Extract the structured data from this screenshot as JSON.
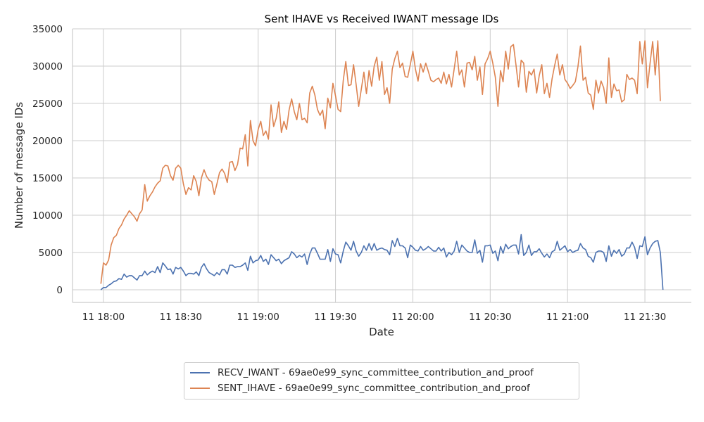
{
  "chart_data": {
    "type": "line",
    "title": "Sent IHAVE vs Received IWANT message IDs",
    "xlabel": "Date",
    "ylabel": "Number of message IDs",
    "ylim": [
      -1700,
      35000
    ],
    "yticks": [
      "0",
      "5000",
      "10000",
      "15000",
      "20000",
      "25000",
      "30000",
      "35000"
    ],
    "xticks": [
      "11 18:00",
      "11 18:30",
      "11 19:00",
      "11 19:30",
      "11 20:00",
      "11 20:30",
      "11 21:00",
      "11 21:30"
    ],
    "xlim": [
      "17:48",
      "21:48"
    ],
    "grid": true,
    "legend_position": "bottom-center",
    "x_start": "17:59",
    "x_step_minutes": 1,
    "series": [
      {
        "name": "RECV_IWANT - 69ae0e99_sync_committee_contribution_and_proof",
        "color": "#4c72b0",
        "values": [
          0,
          300,
          300,
          600,
          800,
          1100,
          1200,
          1500,
          1400,
          2100,
          1700,
          1900,
          1900,
          1600,
          1300,
          1900,
          1900,
          2500,
          2000,
          2300,
          2500,
          2300,
          3100,
          2300,
          3600,
          3200,
          2700,
          2800,
          2100,
          3000,
          2800,
          3000,
          2500,
          1900,
          2200,
          2200,
          2100,
          2400,
          1900,
          3000,
          3500,
          2800,
          2300,
          2100,
          1900,
          2300,
          2000,
          2700,
          2700,
          2100,
          3300,
          3300,
          3000,
          3100,
          3100,
          3300,
          3600,
          2600,
          4500,
          3600,
          3900,
          4000,
          4600,
          3800,
          4100,
          3400,
          4700,
          4300,
          3900,
          4100,
          3500,
          3900,
          4100,
          4300,
          5100,
          4800,
          4300,
          4600,
          4400,
          4800,
          3400,
          4800,
          5600,
          5600,
          4900,
          4100,
          4100,
          4100,
          5400,
          3800,
          5500,
          4800,
          4700,
          3600,
          5200,
          6400,
          5900,
          5300,
          6500,
          5200,
          4500,
          5000,
          5900,
          5300,
          6200,
          5300,
          6200,
          5300,
          5500,
          5600,
          5400,
          5300,
          4700,
          6600,
          5800,
          6900,
          5900,
          5900,
          5600,
          4300,
          6000,
          5700,
          5300,
          5200,
          5800,
          5300,
          5500,
          5800,
          5500,
          5200,
          5200,
          5700,
          5200,
          5600,
          4400,
          5000,
          4700,
          5200,
          6500,
          5000,
          6000,
          5600,
          5200,
          5000,
          5000,
          6700,
          4900,
          5300,
          3700,
          5900,
          5900,
          6000,
          4900,
          5200,
          3900,
          5800,
          4900,
          6100,
          5500,
          5800,
          6000,
          6000,
          4800,
          7400,
          4600,
          5000,
          6000,
          4600,
          5100,
          5100,
          5500,
          4900,
          4400,
          4800,
          4300,
          5100,
          5300,
          6500,
          5300,
          5600,
          5900,
          5100,
          5400,
          5000,
          5200,
          5300,
          6200,
          5600,
          5400,
          4500,
          4300,
          3700,
          5000,
          5200,
          5200,
          5000,
          3800,
          5900,
          4500,
          5300,
          4900,
          5400,
          4500,
          4800,
          5600,
          5600,
          6400,
          5700,
          4200,
          5900,
          5800,
          7100,
          4700,
          5600,
          6200,
          6500,
          6600,
          5000,
          0
        ]
      },
      {
        "name": "SENT_IHAVE - 69ae0e99_sync_committee_contribution_and_proof",
        "color": "#dd8452",
        "values": [
          800,
          3600,
          3300,
          4000,
          6000,
          7000,
          7300,
          8200,
          8700,
          9500,
          10000,
          10600,
          10200,
          9800,
          9200,
          10200,
          10700,
          14100,
          11900,
          12600,
          13100,
          13800,
          14300,
          14600,
          16300,
          16700,
          16600,
          15300,
          14700,
          16300,
          16700,
          16300,
          14200,
          12800,
          13700,
          13400,
          15300,
          14500,
          12600,
          15000,
          16100,
          15200,
          14700,
          14500,
          12800,
          14200,
          15700,
          16200,
          15600,
          14400,
          17100,
          17200,
          16000,
          16800,
          19000,
          18900,
          20800,
          16600,
          22700,
          20000,
          19300,
          21500,
          22600,
          20700,
          21300,
          20200,
          24800,
          21900,
          23000,
          25200,
          21100,
          22600,
          21500,
          24100,
          25600,
          23900,
          22800,
          25000,
          22800,
          23000,
          22400,
          26400,
          27300,
          26100,
          24200,
          23400,
          24100,
          21600,
          25700,
          24400,
          27700,
          26000,
          24200,
          23900,
          28100,
          30600,
          27400,
          27500,
          30200,
          27500,
          24600,
          26900,
          29200,
          26300,
          29400,
          27300,
          30000,
          31200,
          28100,
          30600,
          26200,
          27100,
          25000,
          29600,
          31000,
          32000,
          29800,
          30400,
          28600,
          28500,
          30200,
          32000,
          29600,
          28000,
          30300,
          29200,
          30400,
          29300,
          28100,
          27900,
          28200,
          28400,
          27700,
          29200,
          27600,
          28900,
          27200,
          29600,
          32000,
          28800,
          29500,
          27200,
          30400,
          30500,
          29500,
          31300,
          28100,
          29900,
          26200,
          30300,
          31000,
          32000,
          30400,
          28500,
          24600,
          29400,
          27900,
          32000,
          29600,
          32600,
          32900,
          30100,
          27200,
          30800,
          30400,
          26500,
          29300,
          28800,
          29600,
          26400,
          28700,
          30200,
          26300,
          27700,
          25800,
          28300,
          30100,
          31600,
          28800,
          30200,
          28200,
          27700,
          27000,
          27400,
          27900,
          29900,
          32700,
          28100,
          28500,
          26400,
          26100,
          24200,
          28100,
          26400,
          28000,
          27100,
          25000,
          31100,
          25800,
          27600,
          26700,
          26800,
          25200,
          25500,
          28900,
          28200,
          28400,
          28100,
          26300,
          33300,
          30300,
          33400,
          27100,
          30400,
          33300,
          28800,
          33400,
          25300
        ]
      }
    ]
  }
}
